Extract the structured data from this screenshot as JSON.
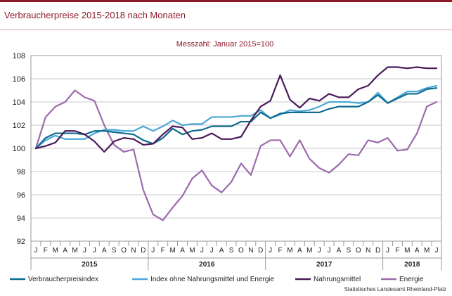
{
  "page": {
    "title": "Verbraucherpreise 2015-2018 nach Monaten",
    "source": "Statistisches Landesamt Rheinland-Pfalz"
  },
  "chart_data": {
    "type": "line",
    "subtitle": "Messzahl: Januar 2015=100",
    "y_ticks": [
      "108",
      "106",
      "104",
      "102",
      "100",
      "98",
      "96",
      "94",
      "92"
    ],
    "ylim": [
      92,
      108
    ],
    "y_step": 2,
    "grid": "horizontal",
    "month_letters": [
      "J",
      "F",
      "M",
      "A",
      "M",
      "J",
      "J",
      "A",
      "S",
      "O",
      "N",
      "D",
      "J",
      "F",
      "M",
      "A",
      "M",
      "J",
      "J",
      "A",
      "S",
      "O",
      "N",
      "D",
      "J",
      "F",
      "M",
      "A",
      "M",
      "J",
      "J",
      "A",
      "S",
      "O",
      "N",
      "D",
      "J",
      "F",
      "M",
      "A",
      "M",
      "J"
    ],
    "years": [
      "2015",
      "2016",
      "2017",
      "2018"
    ],
    "legend_position": "bottom",
    "series": [
      {
        "name": "Verbraucherpreisindex",
        "color": "#0e6a8f",
        "values": [
          100.0,
          100.9,
          101.3,
          101.3,
          101.3,
          101.2,
          101.5,
          101.5,
          101.4,
          101.3,
          101.2,
          100.7,
          100.4,
          100.9,
          101.7,
          101.2,
          101.5,
          101.6,
          101.9,
          101.9,
          101.9,
          102.3,
          102.3,
          103.1,
          102.6,
          103.0,
          103.1,
          103.1,
          103.1,
          103.1,
          103.4,
          103.6,
          103.6,
          103.6,
          104.0,
          104.6,
          103.9,
          104.3,
          104.7,
          104.7,
          105.1,
          105.2
        ]
      },
      {
        "name": "Index ohne Nahrungsmittel und Energie",
        "color": "#4aa8d6",
        "values": [
          100.0,
          100.7,
          101.1,
          100.8,
          100.8,
          100.8,
          101.3,
          101.6,
          101.6,
          101.5,
          101.5,
          101.9,
          101.5,
          101.9,
          102.4,
          102.0,
          102.1,
          102.1,
          102.7,
          102.7,
          102.7,
          102.8,
          102.8,
          103.3,
          102.6,
          102.9,
          103.3,
          103.2,
          103.3,
          103.6,
          104.0,
          104.0,
          104.0,
          103.9,
          104.0,
          104.8,
          103.9,
          104.4,
          104.9,
          104.9,
          105.2,
          105.4
        ]
      },
      {
        "name": "Nahrungsmittel",
        "color": "#4a1a5a",
        "values": [
          100.0,
          100.2,
          100.5,
          101.5,
          101.5,
          101.2,
          100.6,
          99.7,
          100.6,
          100.9,
          100.8,
          100.3,
          100.4,
          101.2,
          101.9,
          101.8,
          100.8,
          100.9,
          101.3,
          100.8,
          100.8,
          101.0,
          102.4,
          103.6,
          104.1,
          106.3,
          104.2,
          103.5,
          104.3,
          104.1,
          104.7,
          104.4,
          104.4,
          105.1,
          105.4,
          106.3,
          107.0,
          107.0,
          106.9,
          107.0,
          106.9,
          106.9
        ]
      },
      {
        "name": "Energie",
        "color": "#9d6aac",
        "values": [
          100.0,
          102.7,
          103.6,
          104.0,
          105.0,
          104.4,
          104.1,
          102.0,
          100.3,
          99.7,
          99.9,
          96.4,
          94.3,
          93.8,
          94.9,
          95.9,
          97.4,
          98.1,
          96.8,
          96.2,
          97.1,
          98.7,
          97.7,
          100.2,
          100.7,
          100.7,
          99.3,
          100.7,
          99.1,
          98.3,
          97.9,
          98.6,
          99.5,
          99.4,
          100.7,
          100.5,
          100.9,
          99.8,
          99.9,
          101.3,
          103.6,
          104.0
        ]
      }
    ]
  }
}
